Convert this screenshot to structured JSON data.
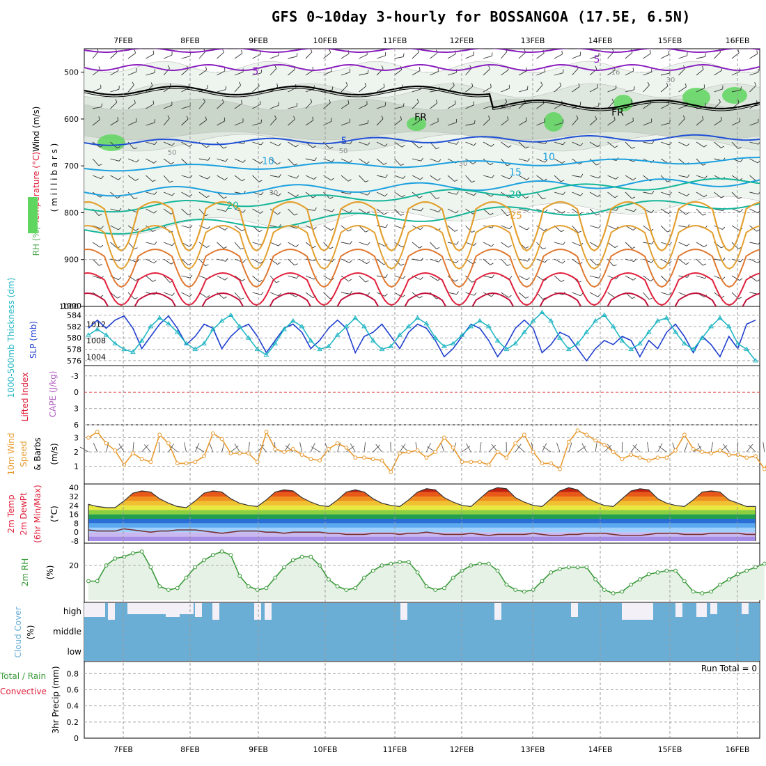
{
  "title": "GFS 0~10day 3-hourly for BOSSANGOA (17.5E, 6.5N)",
  "dates": [
    "7FEB",
    "8FEB",
    "9FEB",
    "10FEB",
    "11FEB",
    "12FEB",
    "13FEB",
    "14FEB",
    "15FEB",
    "16FEB"
  ],
  "run_total": "Run Total = 0",
  "colors": {
    "wind_purple": "#8a1fbf",
    "temp_blue": "#1f4fd6",
    "temp_cyan": "#1aa0e0",
    "temp_teal": "#13b59a",
    "temp_orange": "#e3a030",
    "temp_red": "#e0203c",
    "slp": "#1f3fcf",
    "thickness": "#22b7c4",
    "wind10": "#e89a30",
    "rh2m": "#3a9a3a",
    "cloud": "#6aaed6",
    "rh_green": "#5fd65f"
  },
  "chart_data": [
    {
      "type": "contour",
      "panel": "upper",
      "ylabel_parts": [
        "RH (%)",
        "Temperature (°C)",
        "Wind (m/s)"
      ],
      "ylabel_unit": "( m i l l i b a r s )",
      "y_ticks": [
        "500",
        "600",
        "700",
        "800",
        "900",
        "1000"
      ],
      "ylim": [
        1000,
        450
      ],
      "contour_labels": [
        "5",
        "5",
        "5",
        "10",
        "10",
        "15",
        "20",
        "20",
        "25",
        "FR",
        "FR",
        "30",
        "30",
        "50",
        "50",
        "30",
        "30",
        "16"
      ]
    },
    {
      "type": "line",
      "panel": "slp_thickness",
      "ylabel_left": "1000-500mb Thickness (dm)",
      "ylabel_right": "SLP (mb)",
      "y_ticks_thickness": [
        "584",
        "582",
        "580",
        "578",
        "576"
      ],
      "y_ticks_slp": [
        "1012",
        "1008",
        "1004"
      ],
      "series": [
        {
          "name": "SLP",
          "values": [
            1011,
            1013,
            1011,
            1013,
            1014,
            1011,
            1006,
            1009,
            1012,
            1014,
            1011,
            1007,
            1009,
            1012,
            1011,
            1006,
            1009,
            1011,
            1012,
            1009,
            1005,
            1008,
            1011,
            1012,
            1010,
            1006,
            1008,
            1011,
            1013,
            1011,
            1005,
            1009,
            1010,
            1012,
            1009,
            1006,
            1010,
            1012,
            1011,
            1008,
            1004,
            1006,
            1009,
            1012,
            1011,
            1008,
            1004,
            1007,
            1011,
            1013,
            1011,
            1005,
            1007,
            1010,
            1009,
            1006,
            1003,
            1006,
            1008,
            1007,
            1009,
            1008,
            1004,
            1008,
            1006,
            1010,
            1012,
            1009,
            1005,
            1009,
            1007,
            1004,
            1009,
            1006,
            1012,
            1013
          ]
        },
        {
          "name": "Thickness",
          "values": [
            580.5,
            581.5,
            580.5,
            579,
            578,
            577.5,
            579.5,
            582,
            583.5,
            582.5,
            581,
            579,
            578,
            579,
            581.5,
            583,
            584,
            582,
            580,
            578,
            577,
            579,
            581.5,
            583,
            582,
            579.5,
            578,
            578.5,
            580.5,
            582,
            583.5,
            582,
            579.5,
            578,
            578.5,
            580.5,
            582,
            583.5,
            582.5,
            580,
            578.5,
            579,
            580.5,
            582,
            583,
            582,
            579.5,
            578,
            579,
            581,
            583,
            584.5,
            583,
            580,
            578,
            579,
            581,
            583,
            584,
            582,
            579.5,
            578,
            579,
            581,
            583,
            583.5,
            581,
            579,
            578,
            580,
            582,
            583.5,
            582,
            579,
            578,
            576
          ]
        }
      ]
    },
    {
      "type": "line",
      "panel": "cape_li",
      "ylabel_left": "Lifted Index",
      "ylabel_right": "CAPE (J/kg)",
      "y_ticks": [
        "-3",
        "0",
        "3",
        "6"
      ]
    },
    {
      "type": "line",
      "panel": "wind10m",
      "ylabel": [
        "10m Wind",
        "Speed",
        "& Barbs"
      ],
      "yunit": "(m/s)",
      "y_ticks": [
        "3",
        "2",
        "1"
      ],
      "ylim": [
        0,
        3.8
      ],
      "series": [
        {
          "name": "10m Wind Speed",
          "values": [
            3.0,
            3.4,
            2.6,
            2.1,
            1.1,
            1.9,
            1.5,
            1.3,
            3.2,
            2.6,
            1.2,
            1.2,
            1.3,
            1.7,
            3.3,
            2.9,
            1.9,
            1.9,
            1.9,
            1.3,
            3.4,
            2.2,
            2.0,
            2.2,
            1.8,
            1.5,
            1.4,
            2.2,
            2.6,
            2.3,
            1.6,
            1.6,
            1.5,
            1.4,
            0.6,
            1.9,
            2.0,
            2.1,
            1.6,
            2.0,
            3.0,
            2.3,
            1.3,
            1.3,
            1.3,
            1.1,
            2.0,
            1.6,
            2.6,
            3.2,
            2.0,
            1.2,
            1.2,
            0.8,
            2.7,
            3.5,
            3.2,
            2.8,
            2.5,
            2.0,
            1.5,
            1.8,
            1.6,
            1.4,
            1.6,
            1.6,
            2.1,
            3.2,
            2.2,
            2.0,
            1.9,
            2.1,
            1.8,
            1.8,
            1.6,
            1.7,
            0.8,
            2.0
          ]
        }
      ]
    },
    {
      "type": "area",
      "panel": "temp2m",
      "ylabel": [
        "2m Temp",
        "2m DewPt",
        "(6hr Min/Max)"
      ],
      "yunit": "(°C)",
      "y_ticks": [
        "40",
        "32",
        "24",
        "16",
        "8",
        "0",
        "-8"
      ],
      "ylim": [
        -8,
        42
      ],
      "series": [
        {
          "name": "2m Temp",
          "values": [
            25,
            23,
            22,
            22,
            28,
            35,
            37,
            36,
            30,
            26,
            23,
            22,
            28,
            35,
            37,
            36,
            30,
            26,
            24,
            23,
            29,
            36,
            38,
            37,
            31,
            27,
            24,
            23,
            29,
            36,
            38,
            36,
            30,
            26,
            24,
            23,
            29,
            36,
            39,
            38,
            31,
            27,
            24,
            23,
            30,
            37,
            40,
            39,
            31,
            27,
            24,
            23,
            30,
            37,
            40,
            38,
            31,
            27,
            24,
            23,
            30,
            37,
            39,
            38,
            30,
            26,
            24,
            23,
            29,
            36,
            37,
            36,
            29,
            26,
            23,
            23
          ]
        },
        {
          "name": "2m DewPt",
          "values": [
            2,
            1,
            1,
            1,
            3,
            2,
            1,
            0,
            1,
            1,
            2,
            2,
            2,
            1,
            0,
            -1,
            0,
            1,
            1,
            1,
            0,
            0,
            -1,
            0,
            0,
            0,
            0,
            -1,
            -1,
            -2,
            -2,
            -2,
            -1,
            -1,
            -1,
            -2,
            -1,
            -1,
            0,
            -1,
            -2,
            -2,
            -2,
            -1,
            -2,
            -3,
            -2,
            -2,
            -2,
            -2,
            -1,
            -2,
            -3,
            -3,
            -2,
            -2,
            -1,
            -1,
            -1,
            -2,
            -3,
            -3,
            -3,
            -2,
            -1,
            -1,
            -1,
            -2,
            -2,
            -2,
            -1,
            -1,
            -1,
            -1,
            -2,
            -2
          ]
        }
      ]
    },
    {
      "type": "area",
      "panel": "rh2m",
      "ylabel": "2m RH",
      "yunit": "(%)",
      "y_ticks": [
        "20"
      ],
      "ylim": [
        0,
        32
      ],
      "series": [
        {
          "name": "2m RH",
          "values": [
            11,
            11,
            20,
            24,
            25,
            27,
            28,
            19,
            8,
            6,
            7,
            13,
            19,
            23,
            26,
            28,
            26,
            14,
            8,
            6,
            7,
            13,
            19,
            23,
            25,
            25,
            20,
            12,
            8,
            6,
            7,
            13,
            17,
            20,
            21,
            22,
            22,
            16,
            8,
            6,
            7,
            13,
            17,
            20,
            21,
            21,
            17,
            9,
            6,
            5,
            6,
            11,
            16,
            18,
            19,
            19,
            19,
            12,
            6,
            4,
            5,
            9,
            12,
            15,
            16,
            17,
            17,
            11,
            5,
            4,
            5,
            9,
            12,
            15,
            17,
            19,
            21
          ]
        }
      ]
    },
    {
      "type": "bar",
      "panel": "cloud",
      "ylabel": "Cloud Cover",
      "yunit": "(%)",
      "levels": [
        "high",
        "middle",
        "low"
      ]
    },
    {
      "type": "bar",
      "panel": "precip",
      "ylabel": [
        "3hr Precip (mm)"
      ],
      "ylabel_side": [
        "Total / Rain",
        "Convective"
      ],
      "y_ticks": [
        "0.8",
        "0.6",
        "0.4",
        "0.2",
        "0"
      ],
      "ylim": [
        0,
        0.95
      ]
    }
  ]
}
